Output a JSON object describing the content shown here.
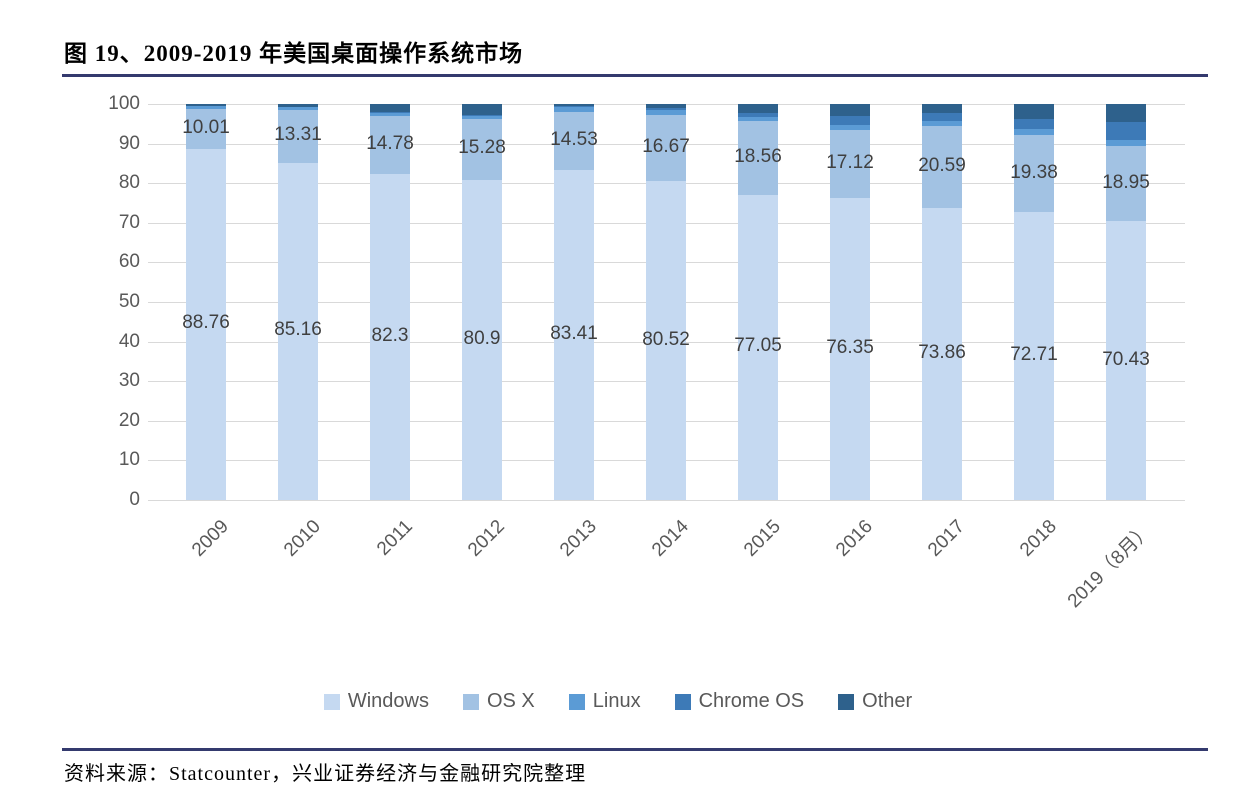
{
  "title": "图 19、2009-2019 年美国桌面操作系统市场",
  "source": "资料来源：Statcounter，兴业证券经济与金融研究院整理",
  "colors": {
    "windows": "#c5d9f1",
    "osx": "#a2c2e3",
    "linux": "#5b9bd5",
    "chrome_os": "#3d7ab7",
    "other": "#2e618c",
    "gridline": "#d9d9d9",
    "axis_text": "#595959",
    "data_label_text": "#3f3f3f",
    "rule": "#343a6e"
  },
  "y_axis": {
    "ticks": [
      100,
      90,
      80,
      70,
      60,
      50,
      40,
      30,
      20,
      10,
      0
    ],
    "min": 0,
    "max": 100
  },
  "chart_data": {
    "type": "bar",
    "stacked": true,
    "percent_stack": true,
    "title": "图 19、2009-2019 年美国桌面操作系统市场",
    "xlabel": "",
    "ylabel": "",
    "ylim": [
      0,
      100
    ],
    "grid": "horizontal",
    "legend_position": "bottom",
    "categories": [
      "2009",
      "2010",
      "2011",
      "2012",
      "2013",
      "2014",
      "2015",
      "2016",
      "2017",
      "2018",
      "2019（8月）"
    ],
    "series": [
      {
        "key": "windows",
        "name": "Windows",
        "color": "#c5d9f1",
        "show_labels": true,
        "values": [
          88.76,
          85.16,
          82.3,
          80.9,
          83.41,
          80.52,
          77.05,
          76.35,
          73.86,
          72.71,
          70.43
        ]
      },
      {
        "key": "osx",
        "name": "OS X",
        "color": "#a2c2e3",
        "show_labels": true,
        "values": [
          10.01,
          13.31,
          14.78,
          15.28,
          14.53,
          16.67,
          18.56,
          17.12,
          20.59,
          19.38,
          18.95
        ]
      },
      {
        "key": "linux",
        "name": "Linux",
        "color": "#5b9bd5",
        "show_labels": false,
        "estimated": true,
        "values": [
          0.7,
          0.73,
          0.8,
          0.9,
          1.36,
          1.31,
          1.1,
          1.2,
          1.35,
          1.5,
          1.42
        ]
      },
      {
        "key": "chrome_os",
        "name": "Chrome OS",
        "color": "#3d7ab7",
        "show_labels": false,
        "estimated": true,
        "values": [
          0.0,
          0.0,
          0.02,
          0.1,
          0.2,
          0.6,
          1.0,
          2.2,
          2.0,
          2.6,
          4.6
        ]
      },
      {
        "key": "other",
        "name": "Other",
        "color": "#2e618c",
        "show_labels": false,
        "estimated": true,
        "values": [
          0.53,
          0.8,
          2.1,
          2.82,
          0.5,
          0.9,
          2.29,
          3.13,
          2.2,
          3.81,
          4.6
        ]
      }
    ],
    "note": "Only Windows and OS X values are labeled in the source image; Linux, Chrome OS and Other segment values are estimated from pixel heights and sum each bar to 100."
  }
}
